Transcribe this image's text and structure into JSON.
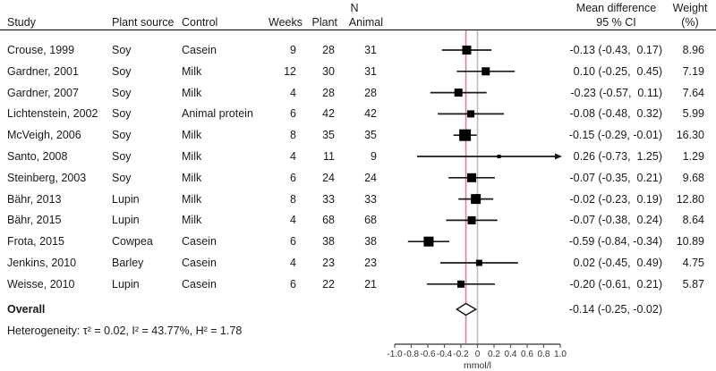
{
  "header": {
    "group_n": "N",
    "study": "Study",
    "plant_source": "Plant source",
    "control": "Control",
    "weeks": "Weeks",
    "n_plant": "Plant",
    "n_animal": "Animal",
    "mean_diff_line1": "Mean difference",
    "mean_diff_line2": "95 % CI",
    "weight_line1": "Weight",
    "weight_line2": "(%)"
  },
  "chart_data": {
    "type": "forest",
    "xlabel": "mmol/l",
    "xlim": [
      -1.0,
      1.0
    ],
    "x_tick_labels": [
      "-1.0",
      "-0.8",
      "-0.6",
      "-0.4",
      "-0.2",
      "0",
      "0.2",
      "0.4",
      "0.6",
      "0.8",
      "1.0"
    ],
    "zero_line": 0,
    "pooled_line": -0.14,
    "colors": {
      "pooled_line": "#d9838e",
      "zero_line": "#bcbcbc",
      "marker": "#000000",
      "ci_line": "#1a1a1a",
      "axis": "#555555",
      "diamond_fill": "#ffffff"
    },
    "studies": [
      {
        "study": "Crouse, 1999",
        "plant_source": "Soy",
        "control": "Casein",
        "weeks": "9",
        "n_plant": "28",
        "n_animal": "31",
        "mean": -0.13,
        "ci_low": -0.43,
        "ci_high": 0.17,
        "ci_label": "-0.13 (-0.43,  0.17)",
        "weight": 8.96,
        "weight_label": "8.96"
      },
      {
        "study": "Gardner, 2001",
        "plant_source": "Soy",
        "control": "Milk",
        "weeks": "12",
        "n_plant": "30",
        "n_animal": "31",
        "mean": 0.1,
        "ci_low": -0.25,
        "ci_high": 0.45,
        "ci_label": "0.10 (-0.25,  0.45)",
        "weight": 7.19,
        "weight_label": "7.19"
      },
      {
        "study": "Gardner, 2007",
        "plant_source": "Soy",
        "control": "Milk",
        "weeks": "4",
        "n_plant": "28",
        "n_animal": "28",
        "mean": -0.23,
        "ci_low": -0.57,
        "ci_high": 0.11,
        "ci_label": "-0.23 (-0.57,  0.11)",
        "weight": 7.64,
        "weight_label": "7.64"
      },
      {
        "study": "Lichtenstein, 2002",
        "plant_source": "Soy",
        "control": "Animal protein",
        "weeks": "6",
        "n_plant": "42",
        "n_animal": "42",
        "mean": -0.08,
        "ci_low": -0.48,
        "ci_high": 0.32,
        "ci_label": "-0.08 (-0.48,  0.32)",
        "weight": 5.99,
        "weight_label": "5.99"
      },
      {
        "study": "McVeigh, 2006",
        "plant_source": "Soy",
        "control": "Milk",
        "weeks": "8",
        "n_plant": "35",
        "n_animal": "35",
        "mean": -0.15,
        "ci_low": -0.29,
        "ci_high": -0.01,
        "ci_label": "-0.15 (-0.29, -0.01)",
        "weight": 16.3,
        "weight_label": "16.30"
      },
      {
        "study": "Santo, 2008",
        "plant_source": "Soy",
        "control": "Milk",
        "weeks": "4",
        "n_plant": "11",
        "n_animal": "9",
        "mean": 0.26,
        "ci_low": -0.73,
        "ci_high": 1.25,
        "ci_label": "0.26 (-0.73,  1.25)",
        "weight": 1.29,
        "weight_label": "1.29"
      },
      {
        "study": "Steinberg, 2003",
        "plant_source": "Soy",
        "control": "Milk",
        "weeks": "6",
        "n_plant": "24",
        "n_animal": "24",
        "mean": -0.07,
        "ci_low": -0.35,
        "ci_high": 0.21,
        "ci_label": "-0.07 (-0.35,  0.21)",
        "weight": 9.68,
        "weight_label": "9.68"
      },
      {
        "study": "Bähr, 2013",
        "plant_source": "Lupin",
        "control": "Milk",
        "weeks": "8",
        "n_plant": "33",
        "n_animal": "33",
        "mean": -0.02,
        "ci_low": -0.23,
        "ci_high": 0.19,
        "ci_label": "-0.02 (-0.23,  0.19)",
        "weight": 12.8,
        "weight_label": "12.80"
      },
      {
        "study": "Bähr, 2015",
        "plant_source": "Lupin",
        "control": "Milk",
        "weeks": "4",
        "n_plant": "68",
        "n_animal": "68",
        "mean": -0.07,
        "ci_low": -0.38,
        "ci_high": 0.24,
        "ci_label": "-0.07 (-0.38,  0.24)",
        "weight": 8.64,
        "weight_label": "8.64"
      },
      {
        "study": "Frota, 2015",
        "plant_source": "Cowpea",
        "control": "Casein",
        "weeks": "6",
        "n_plant": "38",
        "n_animal": "38",
        "mean": -0.59,
        "ci_low": -0.84,
        "ci_high": -0.34,
        "ci_label": "-0.59 (-0.84, -0.34)",
        "weight": 10.89,
        "weight_label": "10.89"
      },
      {
        "study": "Jenkins, 2010",
        "plant_source": "Barley",
        "control": "Casein",
        "weeks": "4",
        "n_plant": "23",
        "n_animal": "23",
        "mean": 0.02,
        "ci_low": -0.45,
        "ci_high": 0.49,
        "ci_label": "0.02 (-0.45,  0.49)",
        "weight": 4.75,
        "weight_label": "4.75"
      },
      {
        "study": "Weisse, 2010",
        "plant_source": "Lupin",
        "control": "Casein",
        "weeks": "6",
        "n_plant": "22",
        "n_animal": "21",
        "mean": -0.2,
        "ci_low": -0.61,
        "ci_high": 0.21,
        "ci_label": "-0.20 (-0.61,  0.21)",
        "weight": 5.87,
        "weight_label": "5.87"
      }
    ],
    "overall": {
      "label": "Overall",
      "mean": -0.14,
      "ci_low": -0.25,
      "ci_high": -0.02,
      "ci_label": "-0.14 (-0.25, -0.02)"
    },
    "heterogeneity": "Heterogeneity: τ² = 0.02, I² = 43.77%, H² = 1.78"
  }
}
